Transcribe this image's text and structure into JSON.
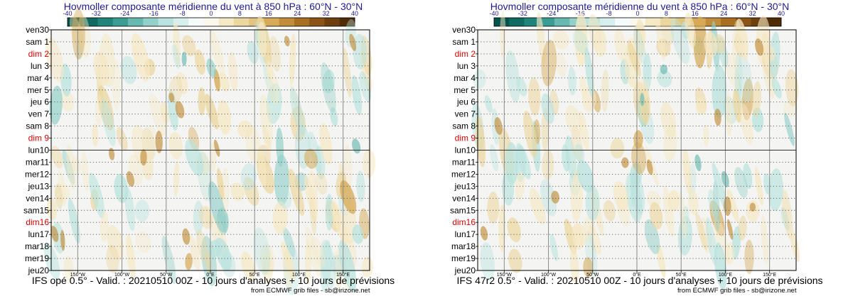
{
  "colors": {
    "title": "#1f1a8f",
    "weekday": "#000000",
    "sunday": "#e00000",
    "scale": [
      "#03524b",
      "#0f6b62",
      "#21847b",
      "#3b9c94",
      "#67b8b0",
      "#93d0c9",
      "#b9e3de",
      "#d7efec",
      "#f4fbfa",
      "#fbf7ec",
      "#f5e8c4",
      "#ecd7a0",
      "#e2c47f",
      "#d6aa58",
      "#c28d3a",
      "#a86e22",
      "#8a5416",
      "#6d3f0e",
      "#4f2c07"
    ]
  },
  "panels": [
    {
      "title": "Hovmoller composante méridienne du vent à 850 hPa : 60°N - 30°N",
      "caption": "IFS opé 0.5° - Valid. : 20210510 00Z - 10 jours d'analyses + 10 jours de prévisions",
      "credit": "from ECMWF grib files - sb@irizone.net"
    },
    {
      "title": "Hovmoller composante méridienne du vent à 850 hPa : 60°N - 30°N",
      "caption": "IFS 47r2 0.5° - Valid. : 20210510 00Z - 10 jours d'analyses + 10 jours de prévisions",
      "credit": "from ECMWF grib files - sb@irizone.net"
    }
  ],
  "chart_data": [
    {
      "type": "heatmap",
      "title": "Hovmoller composante méridienne du vent à 850 hPa : 60°N - 30°N",
      "subtitle": "IFS opé 0.5° - Valid. : 20210510 00Z - 10 jours d'analyses + 10 jours de prévisions",
      "variable": "meridional wind (v) at 850 hPa",
      "colorbar_ticks": [
        -40,
        -32,
        -24,
        -16,
        -8,
        0,
        8,
        16,
        24,
        32,
        40
      ],
      "colorbar_range": [
        -40,
        40
      ],
      "x_range": [
        -180,
        180
      ],
      "x_ticks": [
        "150°W",
        "100°W",
        "50°W",
        "0°E",
        "50°E",
        "100°E",
        "150°E"
      ],
      "x_values": [
        -150,
        -100,
        -50,
        0,
        50,
        100,
        150
      ],
      "y_ticks": [
        "ven30",
        "sam 1",
        "dim 2",
        "lun 3",
        "mar 4",
        "mer 5",
        "jeu 6",
        "ven 7",
        "sam 8",
        "dim 9",
        "lun10",
        "mar11",
        "mer12",
        "jeu13",
        "ven14",
        "sam15",
        "dim16",
        "lun17",
        "mar18",
        "mer19",
        "jeu20"
      ],
      "sunday_ticks": [
        "dim 2",
        "dim 9",
        "dim16"
      ],
      "analysis_forecast_divider": "lun10",
      "grid": true
    },
    {
      "type": "heatmap",
      "title": "Hovmoller composante méridienne du vent à 850 hPa : 60°N - 30°N",
      "subtitle": "IFS 47r2 0.5° - Valid. : 20210510 00Z - 10 jours d'analyses + 10 jours de prévisions",
      "variable": "meridional wind (v) at 850 hPa",
      "colorbar_ticks": [
        -40,
        -32,
        -24,
        -16,
        -8,
        0,
        8,
        16,
        24,
        32,
        40
      ],
      "colorbar_range": [
        -40,
        40
      ],
      "x_range": [
        -180,
        180
      ],
      "x_ticks": [
        "150°W",
        "100°W",
        "50°W",
        "0°E",
        "50°E",
        "100°E",
        "150°E"
      ],
      "x_values": [
        -150,
        -100,
        -50,
        0,
        50,
        100,
        150
      ],
      "y_ticks": [
        "ven30",
        "sam 1",
        "dim 2",
        "lun 3",
        "mar 4",
        "mer 5",
        "jeu 6",
        "ven 7",
        "sam 8",
        "dim 9",
        "lun10",
        "mar11",
        "mer12",
        "jeu13",
        "ven14",
        "sam15",
        "dim16",
        "lun17",
        "mar18",
        "mer19",
        "jeu20"
      ],
      "sunday_ticks": [
        "dim 2",
        "dim 9",
        "dim16"
      ],
      "analysis_forecast_divider": "lun10",
      "grid": true
    }
  ]
}
